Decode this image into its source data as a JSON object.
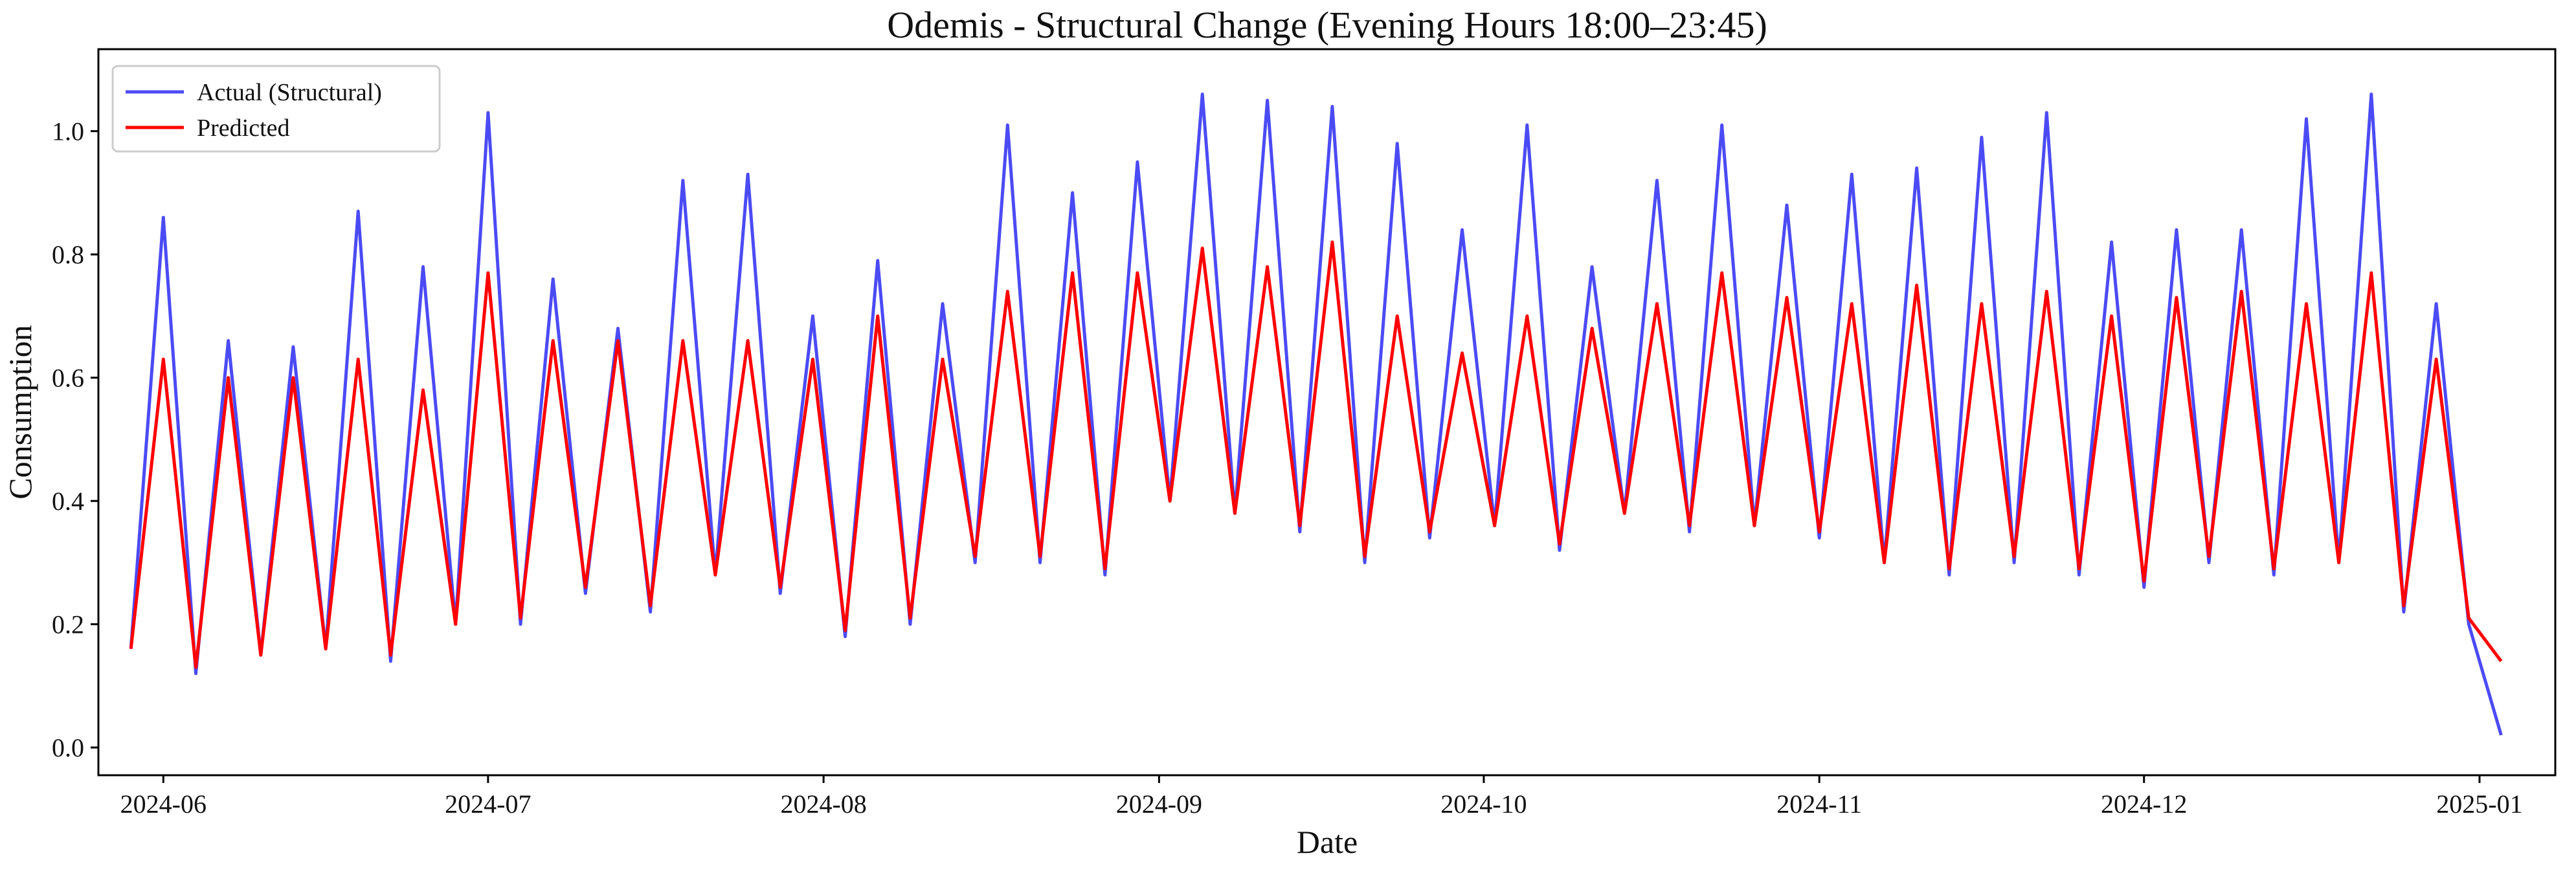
{
  "chart_data": {
    "type": "line",
    "title": "Odemis - Structural Change (Evening Hours 18:00–23:45)",
    "x_label": "Date",
    "y_label": "Consumption",
    "x": [
      "2024-05-29",
      "2024-06-01",
      "2024-06-04",
      "2024-06-07",
      "2024-06-10",
      "2024-06-13",
      "2024-06-16",
      "2024-06-19",
      "2024-06-22",
      "2024-06-25",
      "2024-06-28",
      "2024-07-01",
      "2024-07-04",
      "2024-07-07",
      "2024-07-10",
      "2024-07-13",
      "2024-07-16",
      "2024-07-19",
      "2024-07-22",
      "2024-07-25",
      "2024-07-28",
      "2024-07-31",
      "2024-08-03",
      "2024-08-06",
      "2024-08-09",
      "2024-08-12",
      "2024-08-15",
      "2024-08-18",
      "2024-08-21",
      "2024-08-24",
      "2024-08-27",
      "2024-08-30",
      "2024-09-02",
      "2024-09-05",
      "2024-09-08",
      "2024-09-11",
      "2024-09-14",
      "2024-09-17",
      "2024-09-20",
      "2024-09-23",
      "2024-09-26",
      "2024-09-29",
      "2024-10-02",
      "2024-10-05",
      "2024-10-08",
      "2024-10-11",
      "2024-10-14",
      "2024-10-17",
      "2024-10-20",
      "2024-10-23",
      "2024-10-26",
      "2024-10-29",
      "2024-11-01",
      "2024-11-04",
      "2024-11-07",
      "2024-11-10",
      "2024-11-13",
      "2024-11-16",
      "2024-11-19",
      "2024-11-22",
      "2024-11-25",
      "2024-11-28",
      "2024-12-01",
      "2024-12-04",
      "2024-12-07",
      "2024-12-10",
      "2024-12-13",
      "2024-12-16",
      "2024-12-19",
      "2024-12-22",
      "2024-12-25",
      "2024-12-28",
      "2024-12-31",
      "2025-01-03"
    ],
    "series": [
      {
        "name": "Actual (Structural)",
        "color": "#4b4bf5",
        "values": [
          0.16,
          0.86,
          0.12,
          0.66,
          0.15,
          0.65,
          0.16,
          0.87,
          0.14,
          0.78,
          0.2,
          1.03,
          0.2,
          0.76,
          0.25,
          0.68,
          0.22,
          0.92,
          0.28,
          0.93,
          0.25,
          0.7,
          0.18,
          0.79,
          0.2,
          0.72,
          0.3,
          1.01,
          0.3,
          0.9,
          0.28,
          0.95,
          0.4,
          1.06,
          0.38,
          1.05,
          0.35,
          1.04,
          0.3,
          0.98,
          0.34,
          0.84,
          0.36,
          1.01,
          0.32,
          0.78,
          0.38,
          0.92,
          0.35,
          1.01,
          0.36,
          0.88,
          0.34,
          0.93,
          0.3,
          0.94,
          0.28,
          0.99,
          0.3,
          1.03,
          0.28,
          0.82,
          0.26,
          0.84,
          0.3,
          0.84,
          0.28,
          1.02,
          0.3,
          1.06,
          0.22,
          0.72,
          0.2,
          0.02
        ]
      },
      {
        "name": "Predicted",
        "color": "#ff0000",
        "values": [
          0.16,
          0.63,
          0.13,
          0.6,
          0.15,
          0.6,
          0.16,
          0.63,
          0.15,
          0.58,
          0.2,
          0.77,
          0.21,
          0.66,
          0.26,
          0.66,
          0.23,
          0.66,
          0.28,
          0.66,
          0.26,
          0.63,
          0.19,
          0.7,
          0.21,
          0.63,
          0.31,
          0.74,
          0.31,
          0.77,
          0.29,
          0.77,
          0.4,
          0.81,
          0.38,
          0.78,
          0.36,
          0.82,
          0.31,
          0.7,
          0.35,
          0.64,
          0.36,
          0.7,
          0.33,
          0.68,
          0.38,
          0.72,
          0.36,
          0.77,
          0.36,
          0.73,
          0.35,
          0.72,
          0.3,
          0.75,
          0.29,
          0.72,
          0.31,
          0.74,
          0.29,
          0.7,
          0.27,
          0.73,
          0.31,
          0.74,
          0.29,
          0.72,
          0.3,
          0.77,
          0.23,
          0.63,
          0.21,
          0.14
        ]
      }
    ],
    "xlim": [
      "2024-05-26",
      "2025-01-08"
    ],
    "xticks": [
      {
        "value": "2024-06-01",
        "label": "2024-06"
      },
      {
        "value": "2024-07-01",
        "label": "2024-07"
      },
      {
        "value": "2024-08-01",
        "label": "2024-08"
      },
      {
        "value": "2024-09-01",
        "label": "2024-09"
      },
      {
        "value": "2024-10-01",
        "label": "2024-10"
      },
      {
        "value": "2024-11-01",
        "label": "2024-11"
      },
      {
        "value": "2024-12-01",
        "label": "2024-12"
      },
      {
        "value": "2025-01-01",
        "label": "2025-01"
      }
    ],
    "ylim": [
      -0.045,
      1.133
    ],
    "yticks": [
      {
        "value": 0,
        "label": "0.0"
      },
      {
        "value": 0.2,
        "label": "0.2"
      },
      {
        "value": 0.4,
        "label": "0.4"
      },
      {
        "value": 0.6,
        "label": "0.6"
      },
      {
        "value": 0.8,
        "label": "0.8"
      },
      {
        "value": 1,
        "label": "1.0"
      }
    ],
    "legend": "upper left",
    "grid": false
  }
}
